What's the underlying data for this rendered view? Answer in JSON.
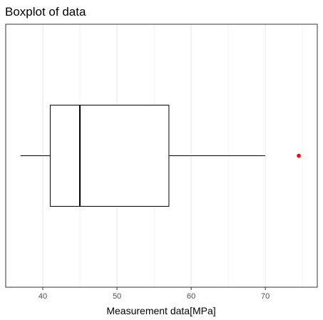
{
  "chart_data": {
    "type": "boxplot",
    "title": "Boxplot of data",
    "xlabel": "Measurement data[MPa]",
    "ylabel": "",
    "orientation": "horizontal",
    "xlim": [
      35,
      77
    ],
    "x_ticks": [
      40,
      50,
      60,
      70
    ],
    "x_tick_labels": [
      "40",
      "50",
      "60",
      "70"
    ],
    "grid": "vertical major and minor",
    "box": {
      "whisker_low": 37,
      "q1": 41,
      "median": 45,
      "q3": 57,
      "whisker_high": 70
    },
    "outliers": [
      74.5
    ],
    "colors": {
      "box": "#000000",
      "outlier": "#ff0000",
      "grid": "#ebebeb"
    }
  }
}
